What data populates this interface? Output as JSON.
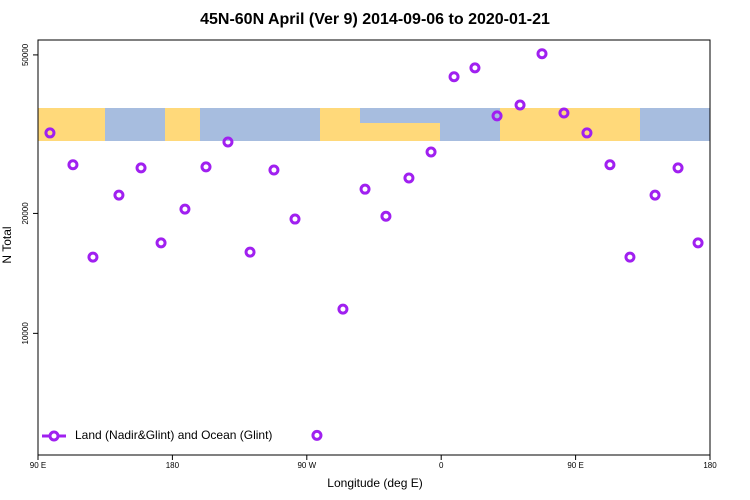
{
  "chart_data": {
    "type": "scatter",
    "title": "45N-60N April (Ver 9)   2014-09-06 to 2020-01-21",
    "x_label": "Longitude (deg E)",
    "y_label": "N Total",
    "xlim": [
      90,
      540
    ],
    "xticks": [
      {
        "value": 90,
        "label": "90 E"
      },
      {
        "value": 180,
        "label": "180"
      },
      {
        "value": 270,
        "label": "90 W"
      },
      {
        "value": 360,
        "label": "0"
      },
      {
        "value": 450,
        "label": "90 E"
      },
      {
        "value": 540,
        "label": "180"
      }
    ],
    "ylim": [
      4950,
      54500
    ],
    "yticks": [
      10000,
      20000,
      50000
    ],
    "log_y": true,
    "legend": "bottom-left",
    "series": [
      {
        "name": "Land (Nadir&Glint) and Ocean (Glint)",
        "color": "#a020f0",
        "x": [
          98,
          113.4,
          126.8,
          144.2,
          159,
          172.4,
          188.4,
          202.5,
          217.2,
          232,
          248,
          262.1,
          276.8,
          294.2,
          309,
          323,
          338.4,
          353.2,
          368.6,
          382.6,
          397.4,
          412.8,
          427.5,
          442.2,
          457.6,
          473,
          486.4,
          503.2,
          518.6,
          532
        ],
        "values": [
          31850,
          26500,
          15540,
          22230,
          26030,
          16870,
          20500,
          26180,
          30220,
          15990,
          25700,
          19360,
          5546,
          11500,
          23010,
          19680,
          24550,
          28530,
          44060,
          46380,
          35150,
          37440,
          50350,
          35730,
          31850,
          26500,
          15540,
          22230,
          26030,
          16870
        ]
      }
    ]
  }
}
